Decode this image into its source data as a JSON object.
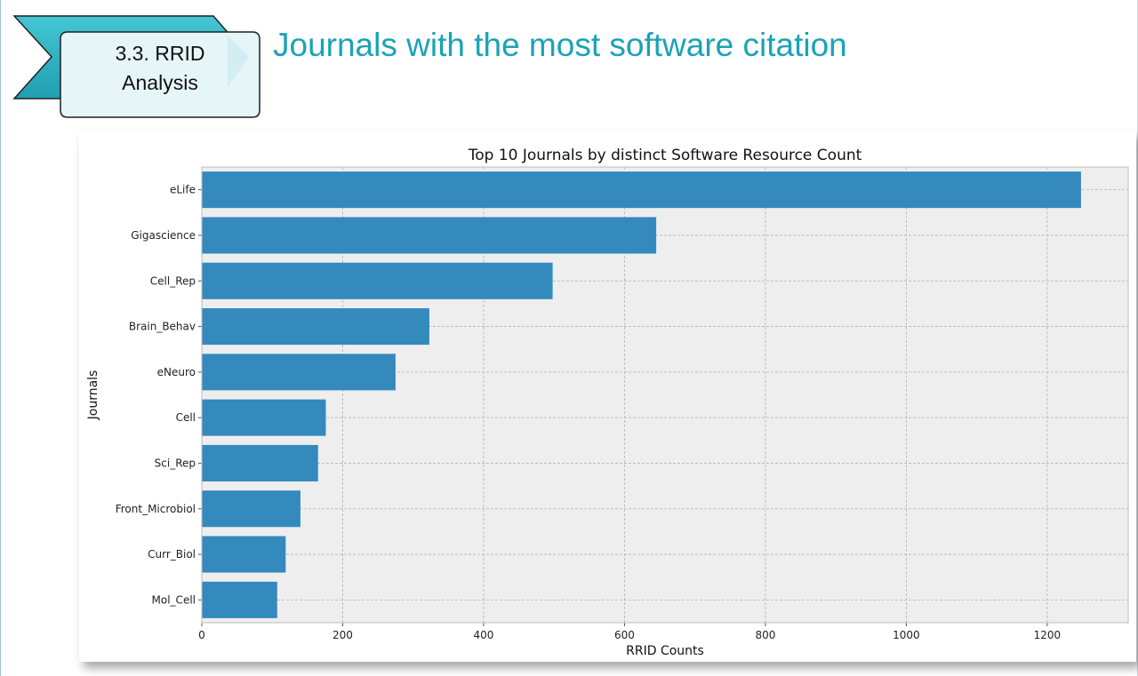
{
  "slide": {
    "badge": {
      "line1": "3.3. RRID",
      "line2": "Analysis"
    },
    "title": "Journals with the most software citation"
  },
  "colors": {
    "accent": "#1aa3b5",
    "badge_arrow": "#2fb6c6",
    "badge_panel": "#e6f5f7",
    "bar": "#348abd",
    "plot_bg": "#eeeeee"
  },
  "chart_data": {
    "type": "bar",
    "orientation": "horizontal",
    "title": "Top 10 Journals by distinct Software Resource Count",
    "xlabel": "RRID Counts",
    "ylabel": "Journals",
    "categories": [
      "eLife",
      "Gigascience",
      "Cell_Rep",
      "Brain_Behav",
      "eNeuro",
      "Cell",
      "Sci_Rep",
      "Front_Microbiol",
      "Curr_Biol",
      "Mol_Cell"
    ],
    "values": [
      1248,
      645,
      498,
      323,
      275,
      176,
      165,
      140,
      119,
      107
    ],
    "xlim": [
      0,
      1315
    ],
    "xticks": [
      0,
      200,
      400,
      600,
      800,
      1000,
      1200
    ],
    "grid": true
  }
}
